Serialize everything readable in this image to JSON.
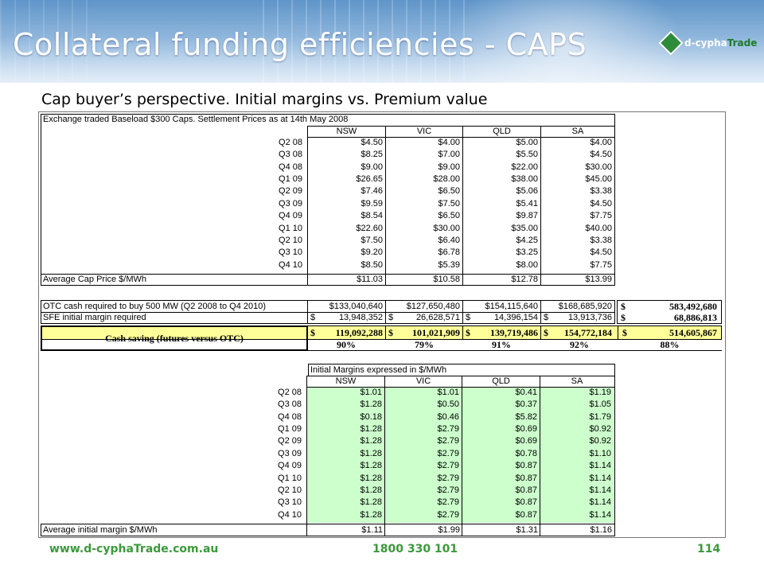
{
  "slide": {
    "title": "Collateral funding efficiencies - CAPS",
    "subtitle": "Cap buyer’s perspective.  Initial margins vs. Premium value",
    "logo_prefix": "d-cypha",
    "logo_suffix": "Trade"
  },
  "settlement": {
    "caption": "Exchange traded Baseload $300 Caps.  Settlement Prices as at 14th May 2008",
    "columns": [
      "NSW",
      "VIC",
      "QLD",
      "SA"
    ],
    "rows": [
      {
        "label": "Q2 08",
        "values": [
          "$4.50",
          "$4.00",
          "$5.00",
          "$4.00"
        ]
      },
      {
        "label": "Q3 08",
        "values": [
          "$8.25",
          "$7.00",
          "$5.50",
          "$4.50"
        ]
      },
      {
        "label": "Q4 08",
        "values": [
          "$9.00",
          "$9.00",
          "$22.00",
          "$30.00"
        ]
      },
      {
        "label": "Q1 09",
        "values": [
          "$26.65",
          "$28.00",
          "$38.00",
          "$45.00"
        ]
      },
      {
        "label": "Q2 09",
        "values": [
          "$7.46",
          "$6.50",
          "$5.06",
          "$3.38"
        ]
      },
      {
        "label": "Q3 09",
        "values": [
          "$9.59",
          "$7.50",
          "$5.41",
          "$4.50"
        ]
      },
      {
        "label": "Q4 09",
        "values": [
          "$8.54",
          "$6.50",
          "$9.87",
          "$7.75"
        ]
      },
      {
        "label": "Q1 10",
        "values": [
          "$22.60",
          "$30.00",
          "$35.00",
          "$40.00"
        ]
      },
      {
        "label": "Q2 10",
        "values": [
          "$7.50",
          "$6.40",
          "$4.25",
          "$3.38"
        ]
      },
      {
        "label": "Q3 10",
        "values": [
          "$9.20",
          "$6.78",
          "$3.25",
          "$4.50"
        ]
      },
      {
        "label": "Q4 10",
        "values": [
          "$8.50",
          "$5.39",
          "$8.00",
          "$7.75"
        ]
      }
    ],
    "average": {
      "label": "Average Cap Price $/MWh",
      "values": [
        "$11.03",
        "$10.58",
        "$12.78",
        "$13.99"
      ]
    }
  },
  "cash": {
    "otc": {
      "label": "OTC cash required to buy 500 MW (Q2 2008 to Q4 2010)",
      "values": [
        "$133,040,640",
        "$127,650,480",
        "$154,115,640",
        "$168,685,920"
      ],
      "total_sym": "$",
      "total": "583,492,680"
    },
    "sfe": {
      "label": "SFE initial margin required",
      "values": [
        [
          "$",
          "13,948,352"
        ],
        [
          "$",
          "26,628,571"
        ],
        [
          "$",
          "14,396,154"
        ],
        [
          "$",
          "13,913,736"
        ]
      ],
      "total_sym": "$",
      "total": "68,886,813"
    },
    "saving": {
      "label": "Cash saving (futures versus OTC)",
      "values": [
        [
          "$",
          "119,092,288"
        ],
        [
          "$",
          "101,021,909"
        ],
        [
          "$",
          "139,719,486"
        ],
        [
          "$",
          "154,772,184"
        ]
      ],
      "total_sym": "$",
      "total": "514,605,867"
    },
    "pct": {
      "values": [
        "90%",
        "79%",
        "91%",
        "92%"
      ],
      "total": "88%"
    }
  },
  "margins": {
    "caption": "Initial Margins expressed in $/MWh",
    "columns": [
      "NSW",
      "VIC",
      "QLD",
      "SA"
    ],
    "rows": [
      {
        "label": "Q2 08",
        "values": [
          "$1.01",
          "$1.01",
          "$0.41",
          "$1.19"
        ]
      },
      {
        "label": "Q3 08",
        "values": [
          "$1.28",
          "$0.50",
          "$0.37",
          "$1.05"
        ]
      },
      {
        "label": "Q4 08",
        "values": [
          "$0.18",
          "$0.46",
          "$5.82",
          "$1.79"
        ]
      },
      {
        "label": "Q1 09",
        "values": [
          "$1.28",
          "$2.79",
          "$0.69",
          "$0.92"
        ]
      },
      {
        "label": "Q2 09",
        "values": [
          "$1.28",
          "$2.79",
          "$0.69",
          "$0.92"
        ]
      },
      {
        "label": "Q3 09",
        "values": [
          "$1.28",
          "$2.79",
          "$0.78",
          "$1.10"
        ]
      },
      {
        "label": "Q4 09",
        "values": [
          "$1.28",
          "$2.79",
          "$0.87",
          "$1.14"
        ]
      },
      {
        "label": "Q1 10",
        "values": [
          "$1.28",
          "$2.79",
          "$0.87",
          "$1.14"
        ]
      },
      {
        "label": "Q2 10",
        "values": [
          "$1.28",
          "$2.79",
          "$0.87",
          "$1.14"
        ]
      },
      {
        "label": "Q3 10",
        "values": [
          "$1.28",
          "$2.79",
          "$0.87",
          "$1.14"
        ]
      },
      {
        "label": "Q4 10",
        "values": [
          "$1.28",
          "$2.79",
          "$0.87",
          "$1.14"
        ]
      }
    ],
    "average": {
      "label": "Average initial margin $/MWh",
      "values": [
        "$1.11",
        "$1.99",
        "$1.31",
        "$1.16"
      ]
    }
  },
  "footer": {
    "website": "www.d-cyphaTrade.com.au",
    "phone": "1800 330 101",
    "page": "114"
  },
  "colors": {
    "margin_fill": "#ccffcc",
    "saving_fill": "#ffff99",
    "footer_text": "#3a9a3a",
    "title_text": "#ffffff"
  }
}
